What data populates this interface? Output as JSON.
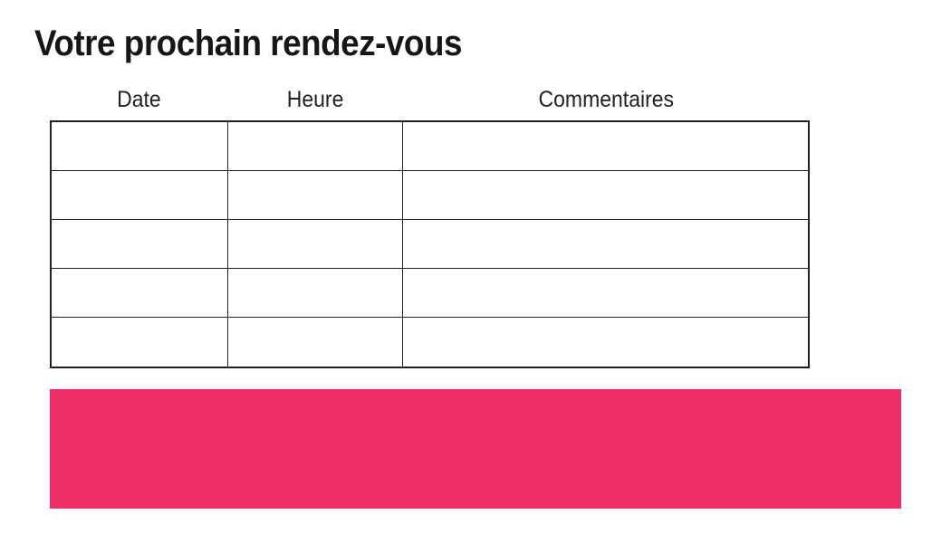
{
  "page": {
    "title": "Votre prochain rendez-vous",
    "background_color": "#ffffff",
    "text_color": "#161616"
  },
  "appointments_table": {
    "column_headers": [
      "Date",
      "Heure",
      "Commentaires"
    ],
    "row_count": 5,
    "rows": [
      [
        "",
        "",
        ""
      ],
      [
        "",
        "",
        ""
      ],
      [
        "",
        "",
        ""
      ],
      [
        "",
        "",
        ""
      ],
      [
        "",
        "",
        ""
      ]
    ],
    "border_color": "#1f1f1f"
  },
  "banner": {
    "background_color": "#ed2e67",
    "text": ""
  }
}
